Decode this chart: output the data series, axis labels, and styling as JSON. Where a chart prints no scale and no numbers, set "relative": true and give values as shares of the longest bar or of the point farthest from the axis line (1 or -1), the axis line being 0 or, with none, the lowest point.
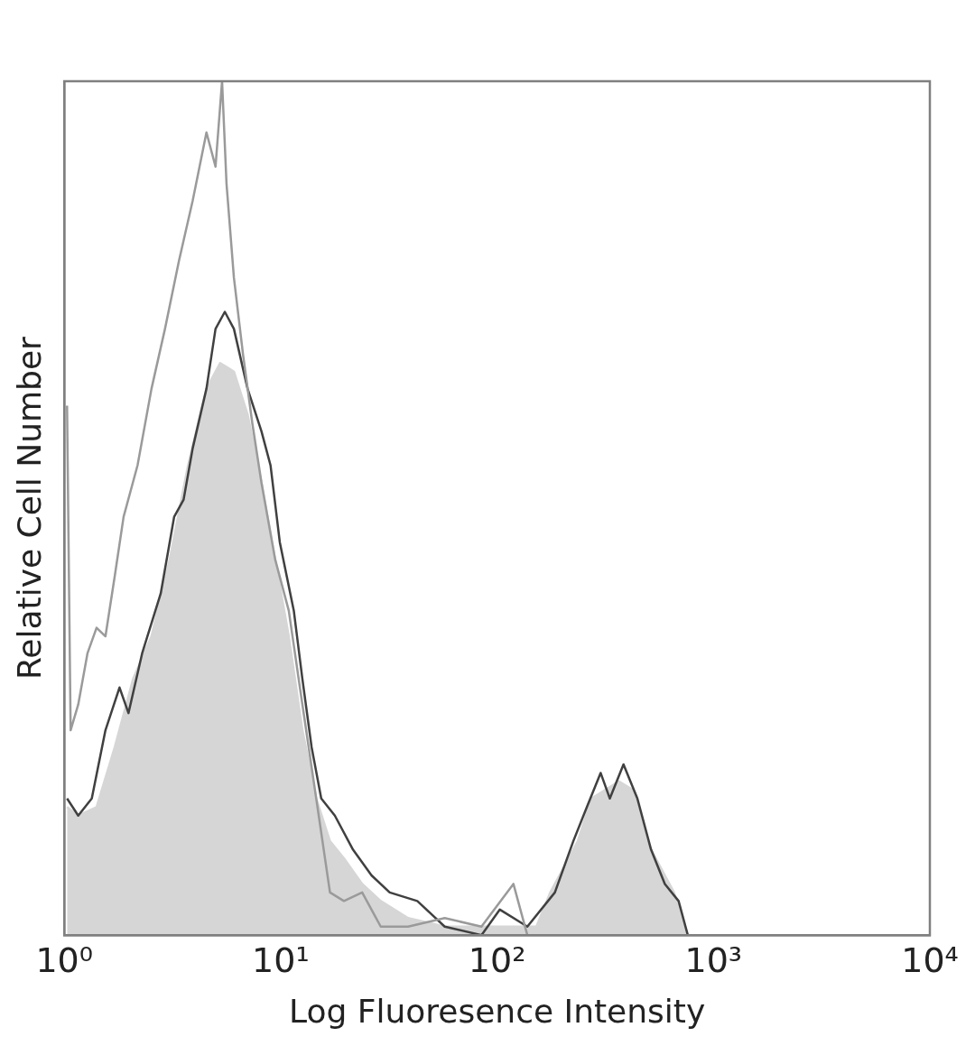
{
  "chart_data": {
    "type": "line",
    "relative": true,
    "log": "x",
    "grid": false,
    "marker": "none",
    "xlabel": "Log Fluoresence Intensity",
    "ylabel": "Relative Cell Number",
    "xlim": [
      1,
      10000
    ],
    "xticks": [
      {
        "value": 1,
        "label": "10⁰"
      },
      {
        "value": 10,
        "label": "10¹"
      },
      {
        "value": 100,
        "label": "10²"
      },
      {
        "value": 1000,
        "label": "10³"
      },
      {
        "value": 10000,
        "label": "10⁴"
      }
    ],
    "series": [
      {
        "type": "area",
        "color": "#d6d6d6",
        "x": [
          1.03,
          1.16,
          1.41,
          1.71,
          2.08,
          2.53,
          3.07,
          3.73,
          4.54,
          5.25,
          6.08,
          7.03,
          8.15,
          9.43,
          10.9,
          12.6,
          14.6,
          16.9,
          19.6,
          23.8,
          29.0,
          38.8,
          57.3,
          93.4,
          152,
          176,
          204,
          236,
          273,
          316,
          366,
          424,
          491,
          568,
          657,
          761,
          799
        ],
        "values": [
          0.15,
          0.14,
          0.15,
          0.22,
          0.3,
          0.35,
          0.44,
          0.55,
          0.64,
          0.67,
          0.66,
          0.61,
          0.53,
          0.44,
          0.35,
          0.24,
          0.16,
          0.11,
          0.09,
          0.06,
          0.04,
          0.02,
          0.01,
          0.01,
          0.01,
          0.05,
          0.08,
          0.11,
          0.16,
          0.17,
          0.18,
          0.17,
          0.11,
          0.08,
          0.05,
          0,
          0
        ]
      },
      {
        "type": "line",
        "color": "#404040",
        "x": [
          1.03,
          1.16,
          1.34,
          1.55,
          1.8,
          1.98,
          2.29,
          2.79,
          3.22,
          3.56,
          3.92,
          4.54,
          5.0,
          5.52,
          6.08,
          7.03,
          8.15,
          8.98,
          9.91,
          11.5,
          12.6,
          13.9,
          15.4,
          17.8,
          21.6,
          26.3,
          31.9,
          42.8,
          57.3,
          84.7,
          103,
          138,
          185,
          225,
          260,
          301,
          332,
          384,
          445,
          515,
          596,
          690,
          761
        ],
        "values": [
          0.16,
          0.14,
          0.16,
          0.24,
          0.29,
          0.26,
          0.33,
          0.4,
          0.49,
          0.51,
          0.57,
          0.64,
          0.71,
          0.73,
          0.71,
          0.64,
          0.59,
          0.55,
          0.46,
          0.38,
          0.3,
          0.22,
          0.16,
          0.14,
          0.1,
          0.07,
          0.05,
          0.04,
          0.01,
          0,
          0.03,
          0.01,
          0.05,
          0.11,
          0.15,
          0.19,
          0.16,
          0.2,
          0.16,
          0.1,
          0.06,
          0.04,
          0
        ]
      },
      {
        "type": "line",
        "color": "#9a9a9a",
        "x": [
          1.03,
          1.07,
          1.16,
          1.28,
          1.41,
          1.55,
          1.71,
          1.88,
          2.18,
          2.53,
          2.92,
          3.39,
          3.92,
          4.54,
          5.0,
          5.36,
          5.62,
          6.08,
          6.7,
          7.39,
          8.15,
          9.43,
          10.9,
          12.6,
          14.6,
          16.9,
          19.6,
          23.8,
          29.0,
          38.8,
          57.3,
          84.7,
          119,
          138,
          168
        ],
        "values": [
          0.62,
          0.24,
          0.27,
          0.33,
          0.36,
          0.35,
          0.42,
          0.49,
          0.55,
          0.64,
          0.71,
          0.79,
          0.86,
          0.94,
          0.9,
          1,
          0.88,
          0.77,
          0.68,
          0.6,
          0.53,
          0.44,
          0.38,
          0.27,
          0.16,
          0.05,
          0.04,
          0.05,
          0.01,
          0.01,
          0.02,
          0.01,
          0.06,
          0,
          0
        ]
      }
    ]
  }
}
